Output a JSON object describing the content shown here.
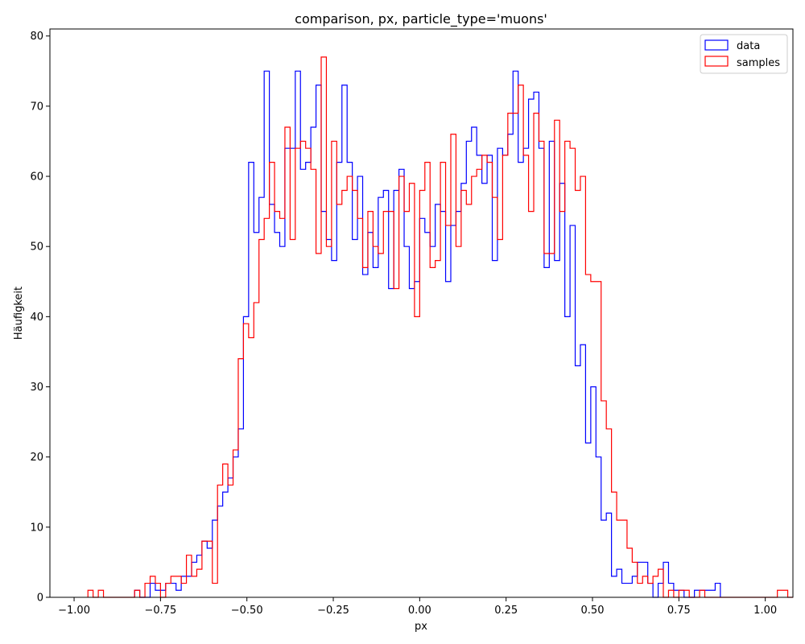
{
  "chart_data": {
    "type": "histogram",
    "title": "comparison, px, particle_type='muons'",
    "xlabel": "px",
    "ylabel": "Häufigkeit",
    "xlim": [
      -1.07,
      1.08
    ],
    "ylim": [
      0,
      81
    ],
    "xticks": [
      -1.0,
      -0.75,
      -0.5,
      -0.25,
      0.0,
      0.25,
      0.5,
      0.75,
      1.0
    ],
    "xtick_labels": [
      "−1.00",
      "−0.75",
      "−0.50",
      "−0.25",
      "0.00",
      "0.25",
      "0.50",
      "0.75",
      "1.00"
    ],
    "yticks": [
      0,
      10,
      20,
      30,
      40,
      50,
      60,
      70,
      80
    ],
    "ytick_labels": [
      "0",
      "10",
      "20",
      "30",
      "40",
      "50",
      "60",
      "70",
      "80"
    ],
    "grid": false,
    "legend_position": "top-right",
    "series": [
      {
        "name": "data",
        "color": "#0000ff",
        "bin_start": -0.825,
        "bin_width": 0.015,
        "counts": [
          1,
          0,
          0,
          2,
          1,
          1,
          2,
          2,
          1,
          3,
          3,
          5,
          6,
          8,
          7,
          11,
          13,
          15,
          17,
          20,
          24,
          40,
          62,
          52,
          57,
          75,
          56,
          52,
          50,
          64,
          64,
          75,
          61,
          62,
          67,
          73,
          55,
          51,
          48,
          62,
          73,
          62,
          51,
          60,
          46,
          52,
          47,
          57,
          58,
          44,
          58,
          61,
          50,
          44,
          45,
          54,
          52,
          50,
          56,
          55,
          45,
          53,
          55,
          59,
          65,
          67,
          63,
          59,
          63,
          48,
          64,
          63,
          66,
          75,
          62,
          64,
          71,
          72,
          64,
          47,
          65,
          48,
          59,
          40,
          53,
          33,
          36,
          22,
          30,
          20,
          11,
          12,
          3,
          4,
          2,
          2,
          3,
          5,
          5,
          2,
          0,
          2,
          5,
          2,
          1,
          1,
          0,
          0,
          1,
          1,
          1,
          1,
          2
        ]
      },
      {
        "name": "samples",
        "color": "#ff0000",
        "bin_start": -0.96,
        "bin_width": 0.015,
        "counts": [
          1,
          0,
          1,
          0,
          0,
          0,
          0,
          0,
          0,
          1,
          0,
          2,
          3,
          2,
          0,
          2,
          3,
          3,
          2,
          6,
          3,
          4,
          8,
          8,
          2,
          16,
          19,
          16,
          21,
          34,
          39,
          37,
          42,
          51,
          54,
          62,
          55,
          54,
          67,
          51,
          64,
          65,
          64,
          61,
          49,
          77,
          50,
          65,
          56,
          58,
          60,
          58,
          54,
          47,
          55,
          50,
          49,
          55,
          55,
          44,
          60,
          55,
          59,
          40,
          58,
          62,
          47,
          48,
          62,
          53,
          66,
          50,
          58,
          56,
          60,
          61,
          63,
          62,
          57,
          51,
          63,
          69,
          69,
          73,
          63,
          55,
          69,
          65,
          49,
          49,
          68,
          55,
          65,
          64,
          58,
          60,
          46,
          45,
          45,
          28,
          24,
          15,
          11,
          11,
          7,
          5,
          2,
          3,
          2,
          3,
          4,
          0,
          1,
          0,
          1,
          1,
          0,
          0,
          1,
          0,
          0,
          0,
          0,
          0,
          0,
          0,
          0,
          0,
          0,
          0,
          0,
          0,
          0,
          1,
          1,
          0
        ]
      }
    ]
  }
}
